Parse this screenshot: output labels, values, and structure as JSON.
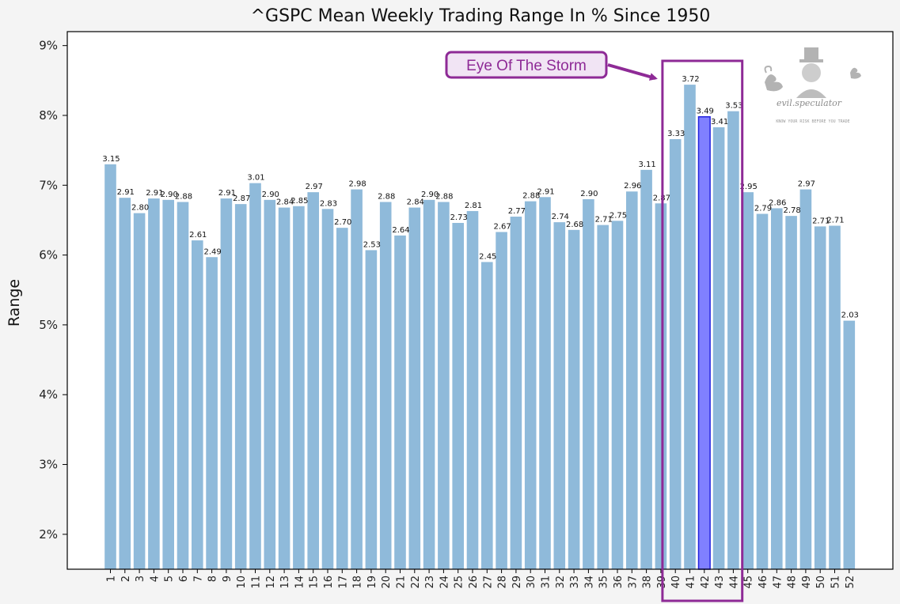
{
  "chart_data": {
    "type": "bar",
    "title": "^GSPC Mean Weekly Trading Range In % Since 1950",
    "xlabel": "",
    "ylabel": "Range",
    "ylim": [
      1.5,
      9.2
    ],
    "yticks": [
      2,
      3,
      4,
      5,
      6,
      7,
      8,
      9
    ],
    "ytick_labels": [
      "2%",
      "3%",
      "4%",
      "5%",
      "6%",
      "7%",
      "8%",
      "9%"
    ],
    "categories": [
      "1",
      "2",
      "3",
      "4",
      "5",
      "6",
      "7",
      "8",
      "9",
      "10",
      "11",
      "12",
      "13",
      "14",
      "15",
      "16",
      "17",
      "18",
      "19",
      "20",
      "21",
      "22",
      "23",
      "24",
      "25",
      "26",
      "27",
      "28",
      "29",
      "30",
      "31",
      "32",
      "33",
      "34",
      "35",
      "36",
      "37",
      "38",
      "39",
      "40",
      "41",
      "42",
      "43",
      "44",
      "45",
      "46",
      "47",
      "48",
      "49",
      "50",
      "51",
      "52"
    ],
    "values": [
      7.3,
      6.82,
      6.6,
      6.81,
      6.79,
      6.76,
      6.21,
      5.97,
      6.81,
      6.73,
      7.03,
      6.79,
      6.68,
      6.7,
      6.9,
      6.66,
      6.39,
      6.94,
      6.07,
      6.76,
      6.28,
      6.68,
      6.79,
      6.76,
      6.46,
      6.63,
      5.9,
      6.33,
      6.55,
      6.77,
      6.83,
      6.47,
      6.36,
      6.8,
      6.43,
      6.49,
      6.91,
      7.22,
      6.74,
      7.66,
      8.44,
      7.98,
      7.83,
      8.06,
      6.9,
      6.59,
      6.67,
      6.56,
      6.94,
      6.41,
      6.42,
      5.06
    ],
    "data_labels": [
      "3.15",
      "2.91",
      "2.80",
      "2.91",
      "2.90",
      "2.88",
      "2.61",
      "2.49",
      "2.91",
      "2.87",
      "3.01",
      "2.90",
      "2.84",
      "2.85",
      "2.97",
      "2.83",
      "2.70",
      "2.98",
      "2.53",
      "2.88",
      "2.64",
      "2.84",
      "2.90",
      "2.88",
      "2.73",
      "2.81",
      "2.45",
      "2.67",
      "2.77",
      "2.88",
      "2.91",
      "2.74",
      "2.68",
      "2.90",
      "2.71",
      "2.75",
      "2.96",
      "3.11",
      "2.87",
      "3.33",
      "3.72",
      "3.49",
      "3.41",
      "3.53",
      "2.95",
      "2.79",
      "2.86",
      "2.78",
      "2.97",
      "2.71",
      "2.71",
      "2.03"
    ],
    "highlight_index": 41,
    "highlight_range": [
      40,
      44
    ],
    "bar_color": "#8fbada",
    "highlight_color": "#8080ff",
    "highlight_edge_color": "#2222dd",
    "highlight_tick_color": "#2a2af0",
    "grid": false
  },
  "annotation": {
    "text": "Eye Of The Storm",
    "color": "#8e2a96",
    "fill": "#f1e4f4"
  },
  "watermark": {
    "name": "evil.speculator",
    "tagline": "KNOW YOUR RISK BEFORE YOU TRADE"
  }
}
